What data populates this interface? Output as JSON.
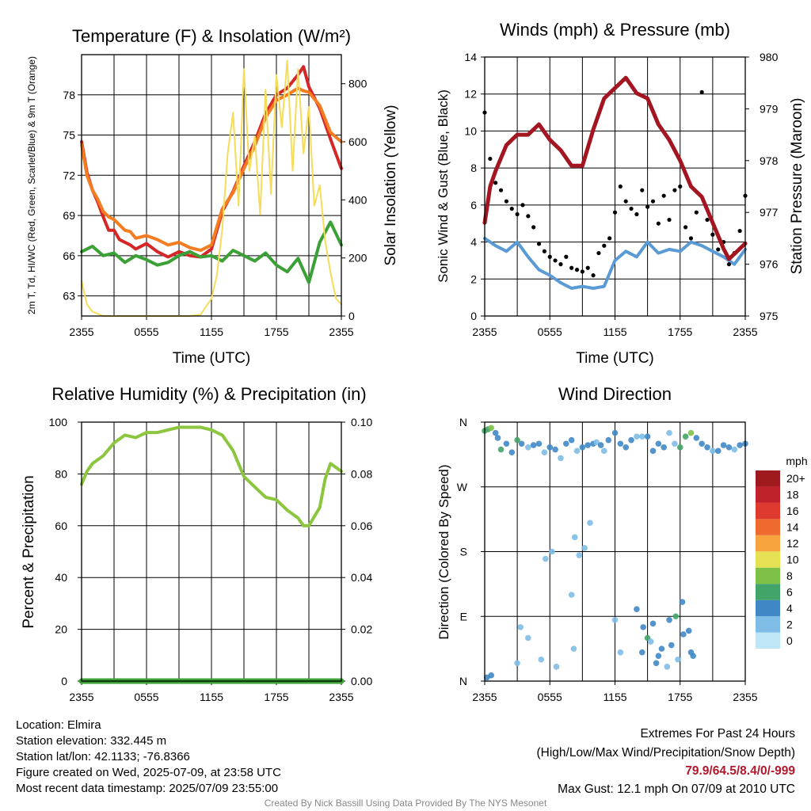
{
  "colors": {
    "temp_red": "#d62728",
    "temp_orange": "#f47d22",
    "dewpoint_green": "#3ba035",
    "insolation_yellow": "#f5dc5a",
    "wind_blue": "#5b9bd5",
    "gust_black": "#000000",
    "pressure_maroon": "#a31621",
    "rh_green": "#8cc63f",
    "precip_green": "#3ba035",
    "extremes_red": "#b2182b",
    "credit_gray": "#888888"
  },
  "x_ticks": [
    "2355",
    "0555",
    "1155",
    "1755",
    "2355"
  ],
  "chart_data": [
    {
      "id": "temperature",
      "type": "line",
      "title": "Temperature (F) & Insolation (W/m²)",
      "xlabel": "Time (UTC)",
      "ylabel": "2m T, Td, HI/WC (Red, Green, Scarlet/Blue) & 9m T (Orange)",
      "y2label": "Solar Insolation (Yellow)",
      "ylim": [
        61.5,
        81.0
      ],
      "y_ticks": [
        63,
        66,
        69,
        72,
        75,
        78
      ],
      "y2lim": [
        0,
        900
      ],
      "y2_ticks": [
        0,
        200,
        400,
        600,
        800
      ],
      "x_hours": [
        0,
        24
      ],
      "grid": true,
      "series": [
        {
          "name": "2m T",
          "color": "#d62728",
          "axis": "left",
          "x": [
            0,
            0.5,
            1,
            1.5,
            2,
            2.5,
            3,
            3.5,
            4,
            4.5,
            5,
            6,
            7,
            8,
            9,
            10,
            11,
            12,
            13,
            14,
            15,
            16,
            17,
            18,
            19,
            20,
            20.5,
            21,
            22,
            23,
            24
          ],
          "y": [
            74.5,
            72.2,
            70.9,
            70.0,
            68.9,
            67.9,
            67.9,
            67.2,
            67.0,
            66.8,
            66.5,
            66.9,
            66.3,
            65.9,
            66.3,
            66.0,
            65.9,
            66.5,
            69.3,
            70.8,
            72.7,
            74.5,
            76.6,
            78.0,
            78.5,
            79.5,
            80.1,
            78.6,
            77.0,
            74.7,
            72.5
          ]
        },
        {
          "name": "9m T",
          "color": "#f47d22",
          "axis": "left",
          "x": [
            0,
            0.5,
            1,
            1.5,
            2,
            2.5,
            3,
            3.5,
            4,
            4.5,
            5,
            6,
            7,
            8,
            9,
            10,
            11,
            12,
            13,
            14,
            15,
            16,
            17,
            18,
            19,
            20,
            20.5,
            21,
            22,
            23,
            24
          ],
          "y": [
            74.3,
            72.0,
            70.9,
            70.2,
            69.3,
            68.9,
            68.7,
            68.3,
            67.9,
            67.8,
            67.3,
            67.5,
            67.2,
            66.8,
            67.0,
            66.6,
            66.4,
            66.8,
            69.5,
            70.7,
            72.5,
            74.2,
            76.3,
            77.6,
            78.0,
            78.5,
            78.3,
            78.2,
            77.2,
            75.2,
            74.5
          ]
        },
        {
          "name": "2m Td",
          "color": "#3ba035",
          "axis": "left",
          "x": [
            0,
            1,
            2,
            3,
            4,
            5,
            6,
            7,
            8,
            9,
            10,
            11,
            12,
            13,
            14,
            15,
            16,
            17,
            18,
            19,
            20,
            21,
            22,
            23,
            24
          ],
          "y": [
            66.3,
            66.7,
            66.0,
            66.2,
            65.5,
            66.0,
            65.7,
            65.3,
            65.5,
            66.0,
            66.3,
            65.9,
            66.0,
            65.6,
            66.4,
            66.0,
            65.6,
            66.2,
            65.3,
            64.8,
            65.8,
            64.0,
            67.0,
            68.5,
            66.8
          ]
        },
        {
          "name": "Solar Insolation",
          "color": "#f5dc5a",
          "axis": "right",
          "x": [
            0,
            0.5,
            1,
            2,
            3,
            4,
            5,
            6,
            7,
            8,
            9,
            10,
            11,
            12,
            12.5,
            13,
            13.5,
            14,
            14.5,
            15,
            15.5,
            16,
            16.5,
            17,
            17.5,
            18,
            18.5,
            19,
            19.5,
            20,
            20.5,
            21,
            21.5,
            22,
            22.5,
            23,
            23.5,
            24
          ],
          "y": [
            120,
            40,
            15,
            0,
            0,
            0,
            0,
            0,
            0,
            0,
            0,
            0,
            5,
            60,
            140,
            300,
            560,
            700,
            380,
            850,
            500,
            620,
            350,
            780,
            420,
            830,
            650,
            880,
            500,
            850,
            560,
            720,
            380,
            450,
            260,
            150,
            60,
            40
          ]
        }
      ]
    },
    {
      "id": "winds",
      "type": "line",
      "title": "Winds (mph) & Pressure (mb)",
      "xlabel": "Time (UTC)",
      "ylabel": "Sonic Wind & Gust (Blue, Black)",
      "y2label": "Station Pressure (Maroon)",
      "ylim": [
        0,
        14
      ],
      "y_ticks": [
        0,
        2,
        4,
        6,
        8,
        10,
        12,
        14
      ],
      "y2lim": [
        975,
        980
      ],
      "y2_ticks": [
        975,
        976,
        977,
        978,
        979,
        980
      ],
      "x_hours": [
        0,
        24
      ],
      "grid": true,
      "series": [
        {
          "name": "Sonic Wind",
          "color": "#5b9bd5",
          "axis": "left",
          "x": [
            0,
            1,
            2,
            3,
            4,
            5,
            6,
            7,
            8,
            9,
            10,
            11,
            12,
            13,
            14,
            15,
            16,
            17,
            18,
            19,
            20,
            21,
            22,
            23,
            24
          ],
          "y": [
            4.2,
            3.8,
            3.5,
            4.0,
            3.2,
            2.5,
            2.2,
            1.8,
            1.5,
            1.6,
            1.5,
            1.6,
            3.0,
            3.5,
            3.2,
            4.0,
            3.4,
            3.6,
            3.5,
            4.0,
            3.8,
            3.5,
            3.2,
            2.8,
            3.6
          ]
        },
        {
          "name": "Gust",
          "color": "#000000",
          "axis": "left",
          "x": [
            0,
            0.5,
            1,
            1.5,
            2,
            2.5,
            3,
            3.5,
            4,
            4.5,
            5,
            5.5,
            6,
            6.5,
            7,
            7.5,
            8,
            8.5,
            9,
            9.5,
            10,
            10.5,
            11,
            11.5,
            12,
            12.5,
            13,
            13.5,
            14,
            14.5,
            15,
            15.5,
            16,
            16.5,
            17,
            17.5,
            18,
            18.5,
            19,
            19.5,
            20,
            20.5,
            21,
            21.5,
            22,
            22.5,
            23,
            23.5,
            24
          ],
          "y": [
            11.0,
            8.5,
            7.2,
            6.8,
            6.2,
            5.8,
            5.5,
            6.0,
            5.4,
            4.8,
            3.9,
            3.5,
            3.2,
            3.0,
            2.8,
            3.2,
            2.6,
            2.5,
            2.4,
            2.6,
            2.2,
            3.4,
            3.8,
            4.2,
            5.6,
            7.0,
            6.2,
            5.8,
            5.5,
            6.8,
            5.9,
            6.2,
            5.0,
            6.5,
            5.2,
            6.8,
            7.0,
            4.8,
            4.2,
            5.6,
            12.1,
            5.2,
            4.4,
            3.6,
            4.0,
            2.8,
            3.4,
            4.6,
            6.5
          ]
        },
        {
          "name": "Station Pressure",
          "color": "#a31621",
          "axis": "right",
          "x": [
            0,
            0.5,
            1,
            2,
            3,
            4,
            5,
            6,
            7,
            8,
            9,
            10,
            11,
            12,
            13,
            14,
            15,
            16,
            17,
            18,
            19,
            20,
            21,
            22,
            22.5,
            23,
            24
          ],
          "y": [
            976.8,
            977.5,
            977.8,
            978.3,
            978.5,
            978.5,
            978.7,
            978.4,
            978.2,
            977.9,
            977.9,
            978.6,
            979.2,
            979.4,
            979.6,
            979.3,
            979.2,
            978.7,
            978.4,
            978.0,
            977.5,
            977.3,
            976.8,
            976.3,
            976.1,
            976.2,
            976.4
          ]
        }
      ]
    },
    {
      "id": "humidity",
      "type": "line",
      "title": "Relative Humidity (%) & Precipitation (in)",
      "ylabel": "Percent & Precipitation",
      "ylim": [
        0,
        100
      ],
      "y_ticks": [
        0,
        20,
        40,
        60,
        80,
        100
      ],
      "y2lim": [
        0,
        0.1
      ],
      "y2_ticks": [
        "0.00",
        "0.02",
        "0.04",
        "0.06",
        "0.08",
        "0.10"
      ],
      "x_hours": [
        0,
        24
      ],
      "grid": true,
      "series": [
        {
          "name": "Relative Humidity",
          "color": "#8cc63f",
          "axis": "left",
          "x": [
            0,
            0.5,
            1,
            2,
            3,
            4,
            5,
            6,
            7,
            8,
            9,
            10,
            11,
            12,
            13,
            14,
            15,
            16,
            17,
            18,
            19,
            20,
            20.5,
            21,
            22,
            22.5,
            23,
            24
          ],
          "y": [
            76,
            81,
            84,
            87,
            92,
            95,
            94,
            96,
            96,
            97,
            98,
            98,
            98,
            97,
            95,
            89,
            79,
            75,
            71,
            70,
            66,
            63,
            60,
            60,
            67,
            78,
            84,
            81
          ]
        },
        {
          "name": "Precipitation",
          "color": "#3ba035",
          "axis": "right",
          "x": [
            0,
            24
          ],
          "y": [
            0,
            0
          ]
        }
      ]
    },
    {
      "id": "direction",
      "type": "scatter",
      "title": "Wind Direction",
      "ylabel": "Direction (Colored By Speed)",
      "y_ticks": [
        "N",
        "E",
        "S",
        "W",
        "N"
      ],
      "ylim": [
        0,
        360
      ],
      "x_hours": [
        0,
        24
      ],
      "grid": true,
      "colorbar": {
        "unit": "mph",
        "labels": [
          "0",
          "2",
          "4",
          "6",
          "8",
          "10",
          "12",
          "14",
          "16",
          "18",
          "20+"
        ],
        "colors": [
          "#bfe6f7",
          "#7fbde6",
          "#3f88c5",
          "#42a468",
          "#7dc149",
          "#e5e153",
          "#f7a440",
          "#ef6a2f",
          "#de3a2f",
          "#c0212a",
          "#9e1a1f"
        ]
      },
      "x": [
        0,
        0.3,
        0.6,
        1,
        1.2,
        1.5,
        2,
        2.5,
        3,
        3.4,
        4,
        4.5,
        5,
        5.5,
        6,
        6.5,
        7,
        7.5,
        8,
        8.5,
        9,
        9.5,
        10,
        10.3,
        10.7,
        11,
        11.4,
        12,
        12.5,
        13,
        13.5,
        14,
        14.5,
        15,
        15.5,
        16,
        16.5,
        17,
        17.5,
        18,
        18.5,
        19,
        19.5,
        20,
        20.5,
        21,
        21.5,
        22,
        22.5,
        23,
        23.5,
        24,
        0.2,
        0.6,
        5.6,
        6.2,
        8.0,
        8.3,
        8.7,
        9.2,
        14.5,
        15,
        15.5,
        16,
        16.8,
        17.2,
        17.6,
        18.2,
        18.8,
        19.2,
        3.0,
        3.3,
        4.0,
        5.2,
        6.6,
        8.2,
        9.7,
        12.0,
        12.5,
        14.0,
        14.6,
        15.3,
        15.8,
        16.3,
        17.0,
        17.8,
        18.3,
        19.0
      ],
      "y": [
        348,
        350,
        352,
        345,
        338,
        322,
        330,
        318,
        335,
        330,
        325,
        328,
        330,
        318,
        325,
        322,
        310,
        330,
        335,
        320,
        325,
        328,
        330,
        332,
        328,
        320,
        335,
        345,
        330,
        325,
        335,
        340,
        340,
        340,
        320,
        330,
        325,
        345,
        330,
        325,
        340,
        345,
        338,
        330,
        325,
        320,
        320,
        328,
        325,
        322,
        328,
        330,
        5,
        8,
        170,
        180,
        120,
        200,
        175,
        185,
        40,
        60,
        80,
        35,
        20,
        50,
        90,
        110,
        70,
        35,
        25,
        75,
        60,
        30,
        20,
        45,
        220,
        85,
        40,
        100,
        75,
        55,
        25,
        45,
        85,
        30,
        65,
        40
      ],
      "speed": [
        5,
        6,
        7,
        4,
        3,
        5,
        4,
        3,
        6,
        4,
        2,
        3,
        3,
        2,
        4,
        3,
        1,
        3,
        4,
        2,
        3,
        4,
        3,
        2,
        3,
        2,
        4,
        3,
        4,
        3,
        3,
        2,
        1,
        4,
        3,
        3,
        4,
        1,
        2,
        5,
        6,
        7,
        3,
        4,
        3,
        2,
        4,
        3,
        3,
        2,
        3,
        4,
        3,
        3,
        2,
        2,
        2,
        1,
        2,
        2,
        4,
        5,
        4,
        3,
        2,
        4,
        5,
        3,
        4,
        3,
        1,
        1,
        2,
        2,
        1,
        2,
        1,
        2,
        1,
        4,
        3,
        2,
        3,
        4,
        3,
        2,
        4,
        3
      ]
    }
  ],
  "info": {
    "location": "Location: Elmira",
    "elevation": "Station elevation: 332.445 m",
    "latlon": "Station lat/lon: 42.1133; -76.8366",
    "created": "Figure created on Wed, 2025-07-09, at 23:58 UTC",
    "recent": "Most recent data timestamp: 2025/07/09 23:55:00"
  },
  "extremes": {
    "title": "Extremes For Past 24 Hours",
    "subtitle": "(High/Low/Max Wind/Precipitation/Snow Depth)",
    "values": "79.9/64.5/8.4/0/-999",
    "gust": "Max Gust: 12.1 mph On 07/09 at 2010 UTC"
  },
  "credit": "Created By Nick Bassill Using Data Provided By The NYS Mesonet"
}
